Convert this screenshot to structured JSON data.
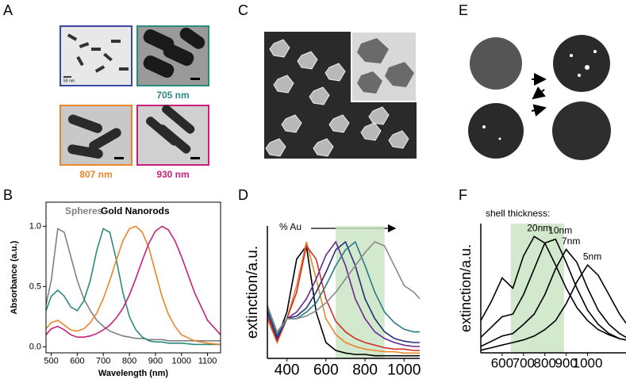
{
  "panel_labels": [
    "A",
    "B",
    "C",
    "D",
    "E",
    "F"
  ],
  "captions": [
    {
      "text": "705 nm",
      "color": "#2a8a80"
    },
    {
      "text": "807 nm",
      "color": "#e8862a"
    },
    {
      "text": "930 nm",
      "color": "#c8207a"
    }
  ],
  "scale_bar": "50 nm",
  "chart_data": [
    {
      "type": "line",
      "xlabel": "Wavelength (nm)",
      "ylabel": "Absorbance (a.u.)",
      "annotations": [
        "Spheres",
        "Gold Nanorods"
      ],
      "xlim": [
        480,
        1150
      ],
      "ylim": [
        -0.05,
        1.2
      ],
      "xticks": [
        500,
        600,
        700,
        800,
        900,
        1000,
        1100
      ],
      "yticks": [
        {
          "value": 0,
          "label": "0.0"
        },
        0.5,
        {
          "value": 1,
          "label": "1.0"
        }
      ],
      "x": [
        480,
        500,
        525,
        550,
        575,
        600,
        625,
        650,
        675,
        700,
        725,
        750,
        775,
        800,
        825,
        850,
        875,
        900,
        925,
        950,
        975,
        1000,
        1050,
        1100,
        1150
      ],
      "series": [
        {
          "color": "#808080",
          "values": [
            0.35,
            0.55,
            0.98,
            0.95,
            0.75,
            0.55,
            0.4,
            0.3,
            0.22,
            0.17,
            0.13,
            0.11,
            0.09,
            0.08,
            0.07,
            0.07,
            0.06,
            0.06,
            0.06,
            0.05,
            0.05,
            0.05,
            0.05,
            0.05,
            0.05
          ]
        },
        {
          "color": "#2a8a80",
          "values": [
            0.3,
            0.42,
            0.47,
            0.42,
            0.33,
            0.3,
            0.38,
            0.55,
            0.8,
            0.98,
            0.95,
            0.72,
            0.45,
            0.25,
            0.14,
            0.08,
            0.05,
            0.04,
            0.04,
            0.03,
            0.03,
            0.03,
            0.02,
            0.02,
            0.02
          ]
        },
        {
          "color": "#e8862a",
          "values": [
            0.15,
            0.2,
            0.22,
            0.18,
            0.14,
            0.13,
            0.15,
            0.2,
            0.28,
            0.4,
            0.55,
            0.72,
            0.88,
            0.98,
            1.0,
            0.95,
            0.82,
            0.62,
            0.42,
            0.27,
            0.17,
            0.1,
            0.05,
            0.03,
            0.02
          ]
        },
        {
          "color": "#c8207a",
          "values": [
            0.1,
            0.15,
            0.17,
            0.14,
            0.1,
            0.08,
            0.08,
            0.09,
            0.11,
            0.14,
            0.18,
            0.24,
            0.32,
            0.43,
            0.57,
            0.72,
            0.86,
            0.96,
            1.0,
            0.97,
            0.88,
            0.75,
            0.45,
            0.22,
            0.1
          ]
        }
      ]
    },
    {
      "type": "line",
      "ylabel": "extinction/a.u.",
      "annotations": [
        "% Au"
      ],
      "xlim": [
        300,
        1080
      ],
      "ylim": [
        0,
        1
      ],
      "xticks": [
        400,
        600,
        800,
        1000
      ],
      "highlight": [
        650,
        900
      ],
      "x": [
        300,
        350,
        400,
        450,
        500,
        550,
        600,
        650,
        700,
        750,
        800,
        850,
        900,
        950,
        1000,
        1050,
        1080
      ],
      "series": [
        {
          "color": "#000000",
          "values": [
            0.3,
            0.15,
            0.35,
            0.75,
            0.85,
            0.35,
            0.12,
            0.06,
            0.04,
            0.03,
            0.03,
            0.02,
            0.02,
            0.02,
            0.02,
            0.02,
            0.02
          ]
        },
        {
          "color": "#e8862a",
          "values": [
            0.3,
            0.12,
            0.3,
            0.55,
            0.88,
            0.6,
            0.3,
            0.18,
            0.12,
            0.09,
            0.07,
            0.06,
            0.05,
            0.05,
            0.04,
            0.04,
            0.04
          ]
        },
        {
          "color": "#d0302a",
          "values": [
            0.32,
            0.13,
            0.3,
            0.5,
            0.85,
            0.75,
            0.45,
            0.28,
            0.2,
            0.15,
            0.12,
            0.1,
            0.08,
            0.07,
            0.07,
            0.06,
            0.06
          ]
        },
        {
          "color": "#6a2a90",
          "values": [
            0.35,
            0.15,
            0.3,
            0.35,
            0.45,
            0.6,
            0.78,
            0.88,
            0.7,
            0.45,
            0.3,
            0.2,
            0.15,
            0.12,
            0.1,
            0.09,
            0.09
          ]
        },
        {
          "color": "#20307a",
          "values": [
            0.36,
            0.16,
            0.3,
            0.32,
            0.38,
            0.5,
            0.65,
            0.82,
            0.88,
            0.7,
            0.45,
            0.3,
            0.2,
            0.15,
            0.13,
            0.12,
            0.12
          ]
        },
        {
          "color": "#2a7a8a",
          "values": [
            0.38,
            0.18,
            0.3,
            0.3,
            0.35,
            0.42,
            0.55,
            0.7,
            0.82,
            0.88,
            0.7,
            0.5,
            0.35,
            0.27,
            0.22,
            0.2,
            0.2
          ]
        },
        {
          "color": "#8a8a8a",
          "values": [
            0.4,
            0.2,
            0.3,
            0.3,
            0.32,
            0.36,
            0.42,
            0.5,
            0.6,
            0.7,
            0.8,
            0.88,
            0.85,
            0.7,
            0.55,
            0.5,
            0.45
          ]
        }
      ]
    },
    {
      "type": "line",
      "ylabel": "extinction/a.u.",
      "annotations": [
        "shell thickness:"
      ],
      "xlim": [
        500,
        1180
      ],
      "ylim": [
        0,
        1
      ],
      "xticks": [
        600,
        700,
        800,
        900,
        1000
      ],
      "highlight": [
        640,
        890
      ],
      "x": [
        500,
        550,
        600,
        650,
        700,
        750,
        800,
        850,
        900,
        950,
        1000,
        1050,
        1100,
        1150,
        1180
      ],
      "series": [
        {
          "name": "20nm",
          "color": "#000000",
          "values": [
            0.25,
            0.4,
            0.58,
            0.5,
            0.75,
            0.9,
            0.85,
            0.68,
            0.5,
            0.35,
            0.25,
            0.18,
            0.14,
            0.11,
            0.1
          ]
        },
        {
          "name": "10nm",
          "color": "#000000",
          "values": [
            0.12,
            0.2,
            0.28,
            0.3,
            0.45,
            0.65,
            0.85,
            0.88,
            0.7,
            0.5,
            0.33,
            0.22,
            0.15,
            0.11,
            0.1
          ]
        },
        {
          "name": "7nm",
          "color": "#000000",
          "values": [
            0.05,
            0.09,
            0.13,
            0.15,
            0.22,
            0.3,
            0.45,
            0.65,
            0.8,
            0.7,
            0.5,
            0.33,
            0.22,
            0.15,
            0.12
          ]
        },
        {
          "name": "5nm",
          "color": "#000000",
          "values": [
            0.02,
            0.04,
            0.06,
            0.08,
            0.1,
            0.13,
            0.18,
            0.25,
            0.38,
            0.55,
            0.68,
            0.6,
            0.45,
            0.3,
            0.23
          ]
        }
      ]
    }
  ]
}
